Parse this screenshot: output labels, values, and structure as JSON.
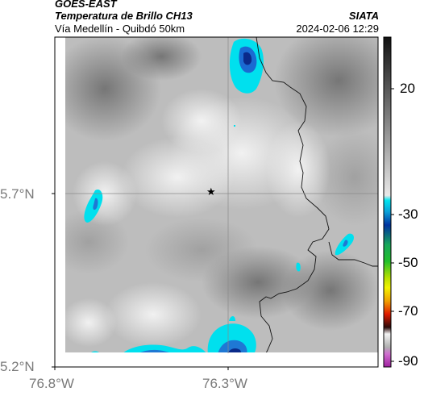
{
  "header": {
    "source": "GOES-EAST",
    "product": "Temperatura de Brillo CH13",
    "region": "Vía Medellín - Quibdó 50km",
    "org": "SIATA",
    "datetime": "2024-02-06 12:29"
  },
  "axes": {
    "lat_ticks": [
      {
        "label": "5.7°N",
        "value": 5.7
      },
      {
        "label": "5.2°N",
        "value": 5.2
      }
    ],
    "lon_ticks": [
      {
        "label": "76.8°W",
        "value": -76.8
      },
      {
        "label": "76.3°W",
        "value": -76.3
      }
    ]
  },
  "colorbar": {
    "labels": [
      "20",
      "-30",
      "-50",
      "-70",
      "-90"
    ],
    "colors": {
      "gray_dark": "#151515",
      "gray_light": "#eeeeee",
      "cyan": "#00e5ef",
      "blue": "#0032a0",
      "green": "#22c02a",
      "yellow": "#f2f200",
      "red": "#e01a00",
      "magenta": "#c040c0"
    }
  },
  "marker": {
    "symbol": "★"
  }
}
